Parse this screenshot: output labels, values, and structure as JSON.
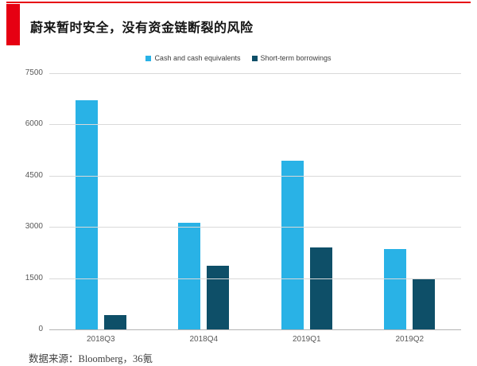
{
  "header": {
    "title": "蔚来暂时安全，没有资金链断裂的风险"
  },
  "chart_data": {
    "type": "bar",
    "title": "蔚来暂时安全，没有资金链断裂的风险",
    "categories": [
      "2018Q3",
      "2018Q4",
      "2019Q1",
      "2019Q2"
    ],
    "series": [
      {
        "name": "Cash and cash equivalents",
        "color": "#29b2e6",
        "values": [
          6700,
          3110,
          4930,
          2350
        ]
      },
      {
        "name": "Short-term borrowings",
        "color": "#0e4f68",
        "values": [
          420,
          1860,
          2400,
          1500
        ]
      }
    ],
    "xlabel": "",
    "ylabel": "",
    "ylim": [
      0,
      7500
    ],
    "yticks": [
      0,
      1500,
      3000,
      4500,
      6000,
      7500
    ],
    "grid": "horizontal",
    "legend_position": "top-center"
  },
  "footer": {
    "source": "数据来源：Bloomberg，36氪"
  },
  "colors": {
    "accent": "#e60012",
    "grid": "#d9d9d9",
    "axis": "#b3b3b3",
    "tick_text": "#595959"
  }
}
